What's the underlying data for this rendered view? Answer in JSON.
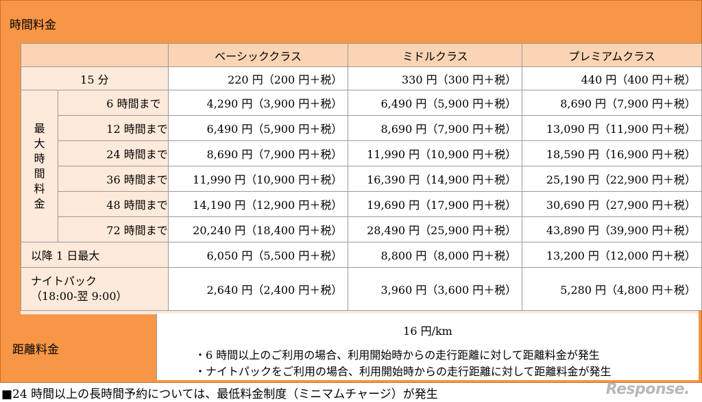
{
  "hourly": {
    "title": "時間料金",
    "headers": [
      "ベーシッククラス",
      "ミドルクラス",
      "プレミアムクラス"
    ],
    "row15": {
      "label": "15 分",
      "values": [
        "220 円（200 円＋税）",
        "330 円（300 円＋税）",
        "440 円（400 円＋税）"
      ]
    },
    "max_label_chars": [
      "最",
      "大",
      "時",
      "間",
      "料",
      "金"
    ],
    "max_rows": [
      {
        "label": "6 時間まで",
        "values": [
          "4,290 円（3,900 円＋税）",
          "6,490 円（5,900 円＋税）",
          "8,690 円（7,900 円＋税）"
        ]
      },
      {
        "label": "12 時間まで",
        "values": [
          "6,490 円（5,900 円＋税）",
          "8,690 円（7,900 円＋税）",
          "13,090 円（11,900 円＋税）"
        ]
      },
      {
        "label": "24 時間まで",
        "values": [
          "8,690 円（7,900 円＋税）",
          "11,990 円（10,900 円＋税）",
          "18,590 円（16,900 円＋税）"
        ]
      },
      {
        "label": "36 時間まで",
        "values": [
          "11,990 円（10,900 円＋税）",
          "16,390 円（14,900 円＋税）",
          "25,190 円（22,900 円＋税）"
        ]
      },
      {
        "label": "48 時間まで",
        "values": [
          "14,190 円（12,900 円＋税）",
          "19,690 円（17,900 円＋税）",
          "30,690 円（27,900 円＋税）"
        ]
      },
      {
        "label": "72 時間まで",
        "values": [
          "20,240 円（18,400 円＋税）",
          "28,490 円（25,900 円＋税）",
          "43,890 円（39,900 円＋税）"
        ]
      }
    ],
    "daily": {
      "label": "以降 1 日最大",
      "values": [
        "6,050 円（5,500 円＋税）",
        "8,800 円（8,000 円＋税）",
        "13,200 円（12,000 円＋税）"
      ]
    },
    "night": {
      "label_line1": "ナイトパック",
      "label_line2": "（18:00-翌 9:00）",
      "values": [
        "2,640 円（2,400 円＋税）",
        "3,960 円（3,600 円＋税）",
        "5,280 円（4,800 円＋税）"
      ]
    }
  },
  "distance": {
    "title": "距離料金",
    "rate": "16 円/km",
    "notes": [
      "・6 時間以上のご利用の場合、利用開始時からの走行距離に対して距離料金が発生",
      "・ナイトパックをご利用の場合、利用開始時からの走行距離に対して距離料金が発生"
    ]
  },
  "footer": "■24 時間以上の長時間予約については、最低料金制度（ミニマムチャージ）が発生",
  "watermark": "Response."
}
